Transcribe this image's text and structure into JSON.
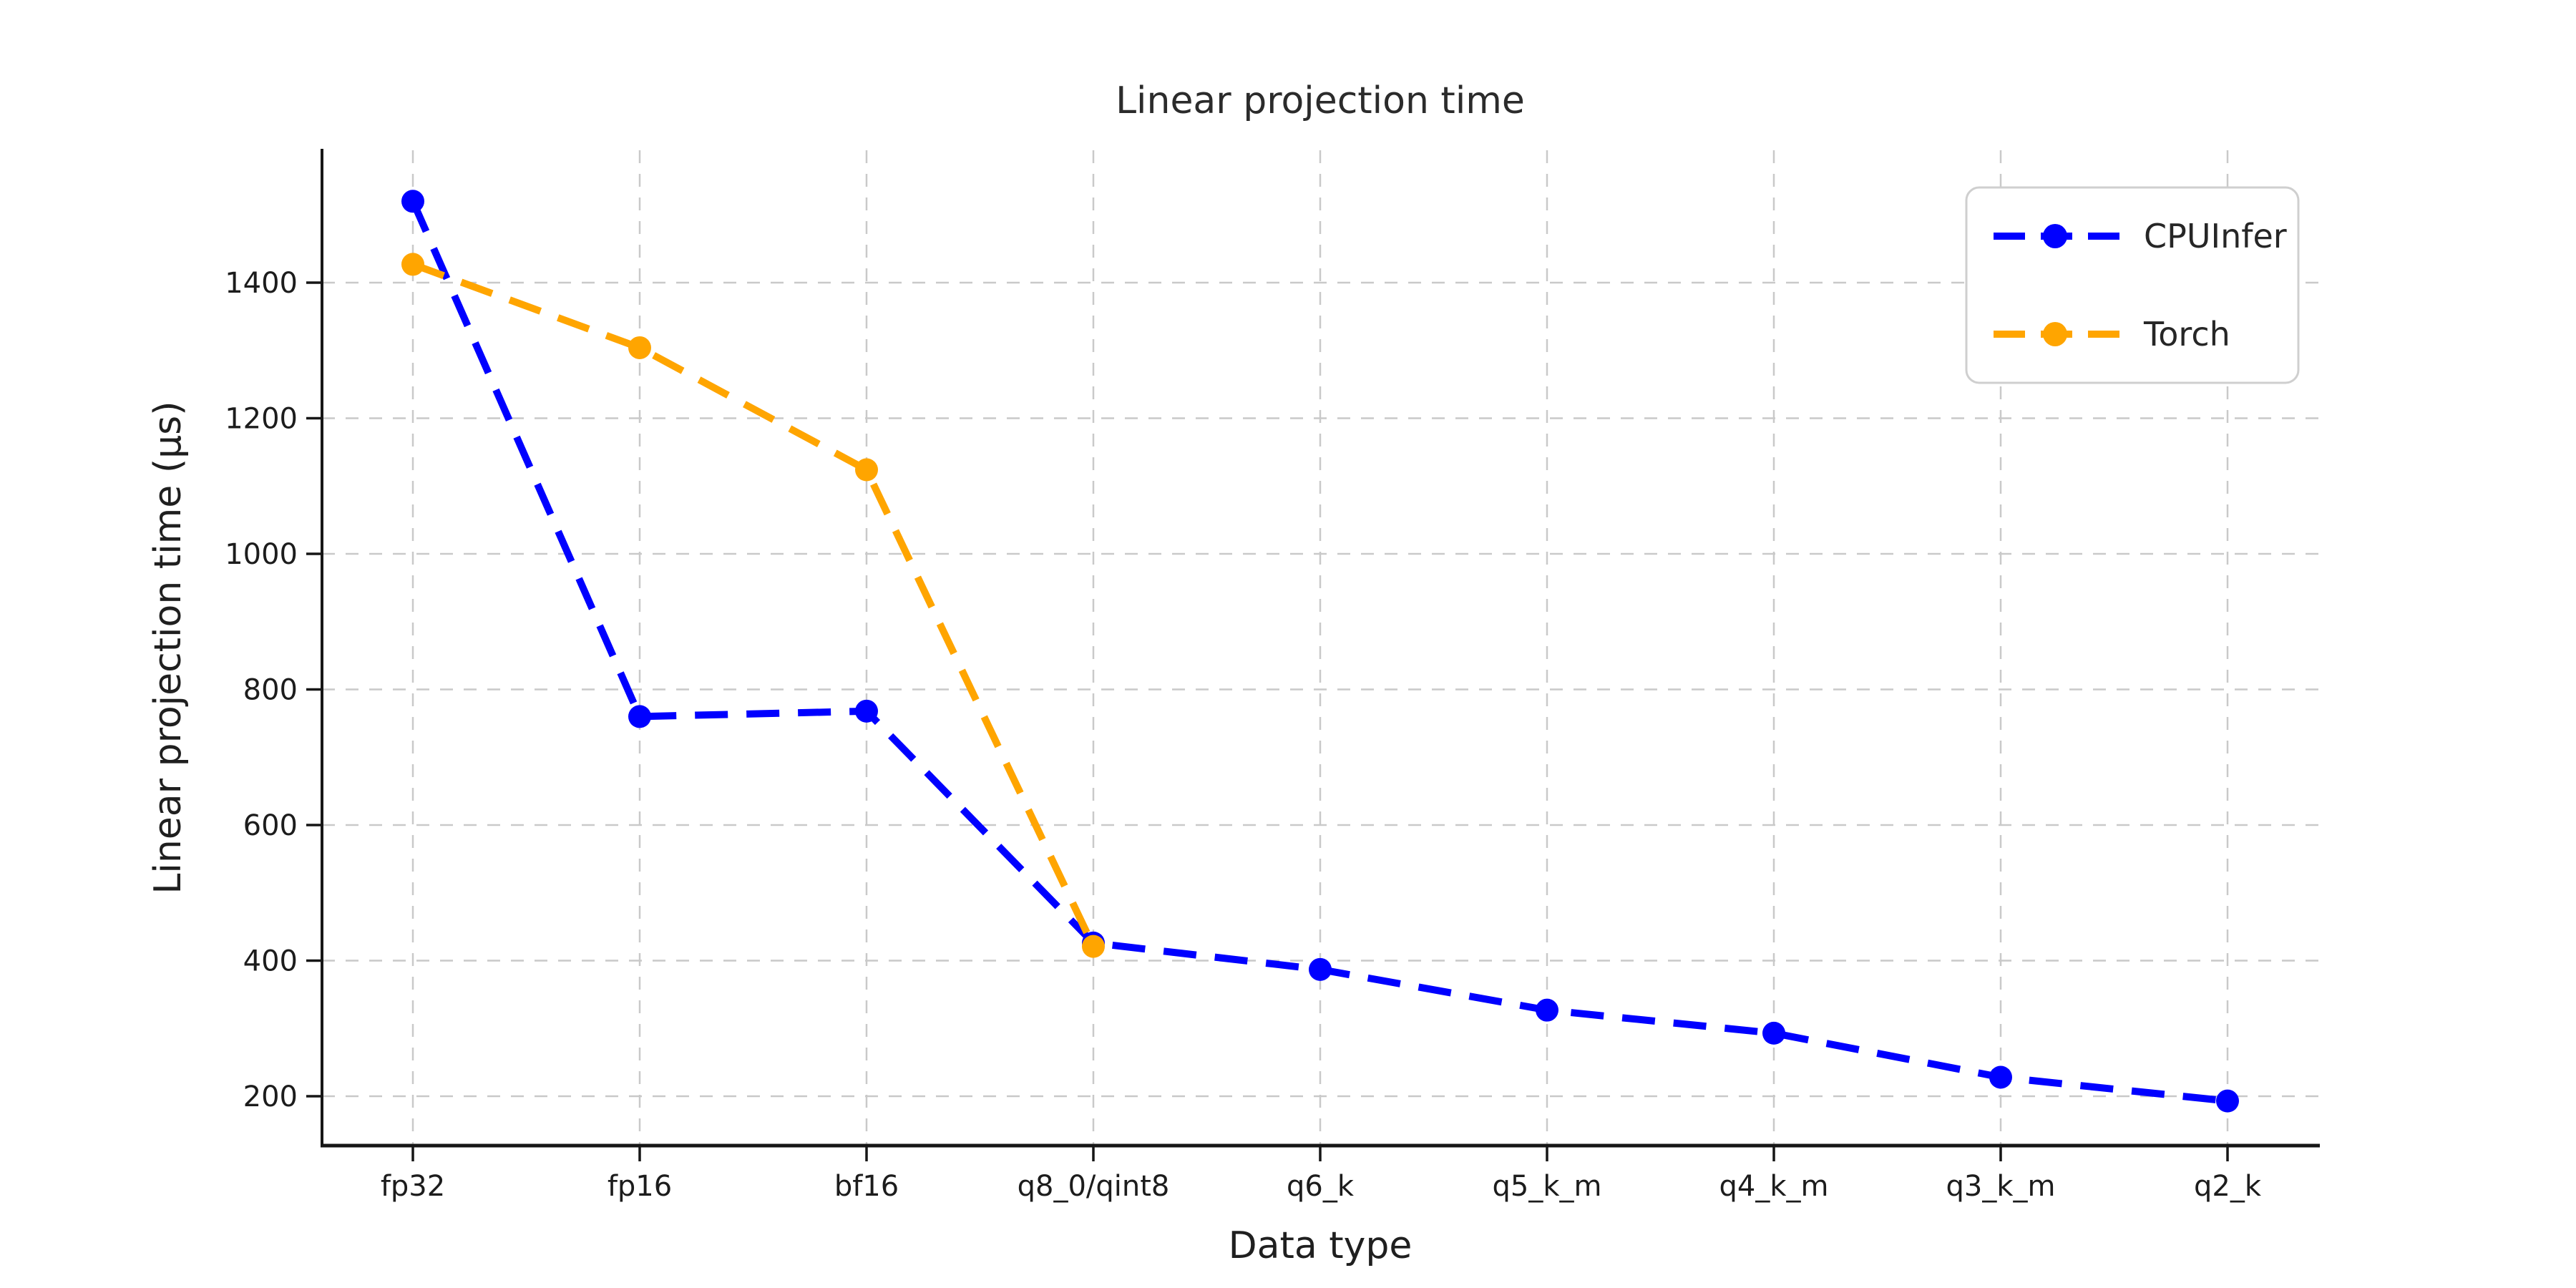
{
  "chart_data": {
    "type": "line",
    "title": "Linear projection time",
    "xlabel": "Data type",
    "ylabel": "Linear projection time (µs)",
    "categories": [
      "fp32",
      "fp16",
      "bf16",
      "q8_0/qint8",
      "q6_k",
      "q5_k_m",
      "q4_k_m",
      "q3_k_m",
      "q2_k"
    ],
    "series": [
      {
        "name": "CPUInfer",
        "color": "#0000ff",
        "values": [
          1520,
          760,
          768,
          426,
          387,
          327,
          293,
          228,
          193
        ]
      },
      {
        "name": "Torch",
        "color": "#ffa500",
        "values": [
          1427,
          1304,
          1124,
          421
        ]
      }
    ],
    "yticks": [
      200,
      400,
      600,
      800,
      1000,
      1200,
      1400
    ],
    "ylim": [
      125,
      1595
    ],
    "grid": true,
    "grid_style": "dashed",
    "line_style": "dashed",
    "marker": "o",
    "legend_position": "upper right",
    "colors": {
      "grid": "#c9c9c9",
      "axis": "#161616",
      "tick_text": "#1c1c1c",
      "legend_border": "#cfcfcf",
      "background": "#ffffff"
    }
  }
}
